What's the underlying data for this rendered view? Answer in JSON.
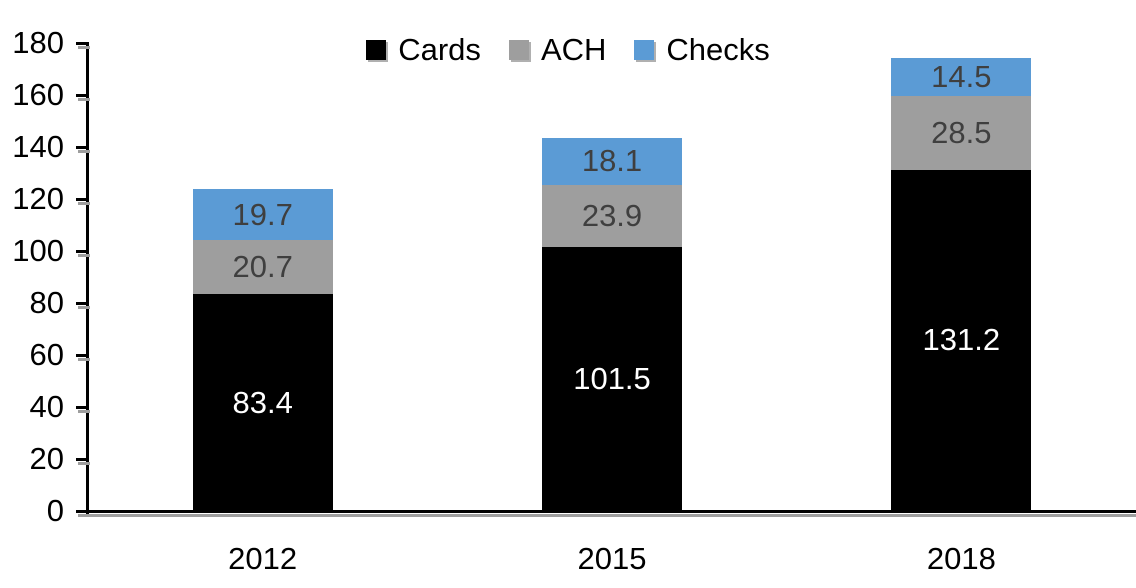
{
  "chart_data": {
    "type": "bar",
    "stacked": true,
    "title": "",
    "categories": [
      "2012",
      "2015",
      "2018"
    ],
    "series": [
      {
        "name": "Cards",
        "color": "#000000",
        "label_color": "#ffffff",
        "values": [
          83.4,
          101.5,
          131.2
        ]
      },
      {
        "name": "ACH",
        "color": "#9e9e9e",
        "label_color": "#3f3f3f",
        "values": [
          20.7,
          23.9,
          28.5
        ]
      },
      {
        "name": "Checks",
        "color": "#5b9bd5",
        "label_color": "#3f3f3f",
        "values": [
          19.7,
          18.1,
          14.5
        ]
      }
    ],
    "xlabel": "",
    "ylabel": "",
    "ylim": [
      0,
      180
    ],
    "ytick_step": 20,
    "yticks": [
      0,
      20,
      40,
      60,
      80,
      100,
      120,
      140,
      160,
      180
    ],
    "legend_position": "top",
    "grid": false,
    "axis_color": "#000000"
  }
}
